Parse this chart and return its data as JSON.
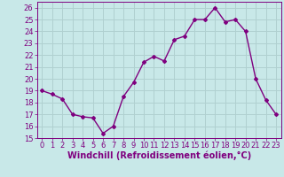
{
  "x": [
    0,
    1,
    2,
    3,
    4,
    5,
    6,
    7,
    8,
    9,
    10,
    11,
    12,
    13,
    14,
    15,
    16,
    17,
    18,
    19,
    20,
    21,
    22,
    23
  ],
  "y": [
    19,
    18.7,
    18.3,
    17,
    16.8,
    16.7,
    15.4,
    16,
    18.5,
    19.7,
    21.4,
    21.9,
    21.5,
    23.3,
    23.6,
    25,
    25,
    26,
    24.8,
    25,
    24,
    20,
    18.2,
    17
  ],
  "line_color": "#7f007f",
  "marker": "D",
  "marker_size": 2,
  "line_width": 1,
  "background_color": "#c8e8e8",
  "grid_color": "#b0d0d0",
  "xlabel": "Windchill (Refroidissement éolien,°C)",
  "ylim": [
    15,
    26.5
  ],
  "xlim": [
    -0.5,
    23.5
  ],
  "yticks": [
    15,
    16,
    17,
    18,
    19,
    20,
    21,
    22,
    23,
    24,
    25,
    26
  ],
  "xticks": [
    0,
    1,
    2,
    3,
    4,
    5,
    6,
    7,
    8,
    9,
    10,
    11,
    12,
    13,
    14,
    15,
    16,
    17,
    18,
    19,
    20,
    21,
    22,
    23
  ],
  "tick_color": "#7f007f",
  "label_color": "#7f007f",
  "label_fontsize": 7,
  "tick_fontsize": 6
}
